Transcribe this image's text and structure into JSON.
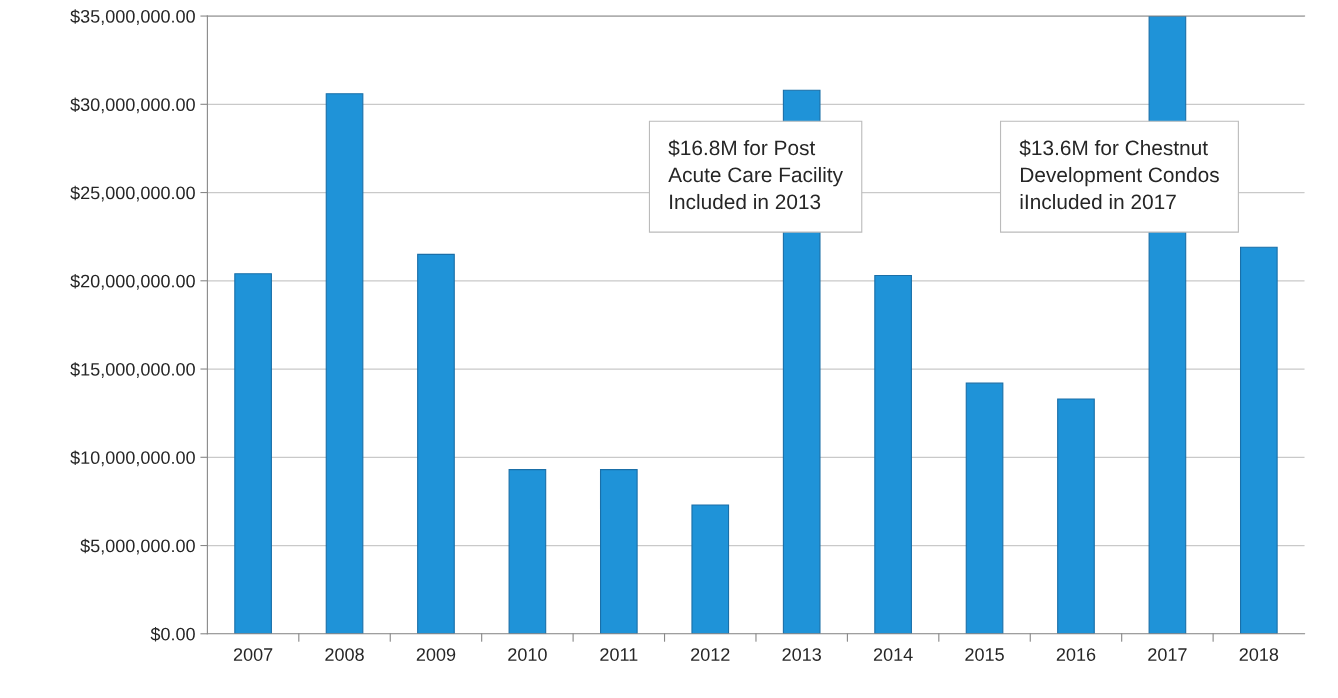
{
  "chart_data": {
    "type": "bar",
    "categories": [
      "2007",
      "2008",
      "2009",
      "2010",
      "2011",
      "2012",
      "2013",
      "2014",
      "2015",
      "2016",
      "2017",
      "2018"
    ],
    "values": [
      20400000,
      30600000,
      21500000,
      9300000,
      9300000,
      7300000,
      30800000,
      20300000,
      14200000,
      13300000,
      35000000,
      21900000
    ],
    "color": "#1f93d8",
    "ylim": [
      0,
      35000000
    ],
    "yticks": [
      {
        "value": 0,
        "label": "$0.00"
      },
      {
        "value": 5000000,
        "label": "$5,000,000.00"
      },
      {
        "value": 10000000,
        "label": "$10,000,000.00"
      },
      {
        "value": 15000000,
        "label": "$15,000,000.00"
      },
      {
        "value": 20000000,
        "label": "$20,000,000.00"
      },
      {
        "value": 25000000,
        "label": "$25,000,000.00"
      },
      {
        "value": 30000000,
        "label": "$30,000,000.00"
      },
      {
        "value": 35000000,
        "label": "$35,000,000.00"
      }
    ],
    "grid": "y",
    "annotations": [
      "$16.8M for Post\nAcute Care Facility\nIncluded in 2013",
      "$13.6M for Chestnut\nDevelopment Condos\niIncluded in 2017"
    ]
  }
}
